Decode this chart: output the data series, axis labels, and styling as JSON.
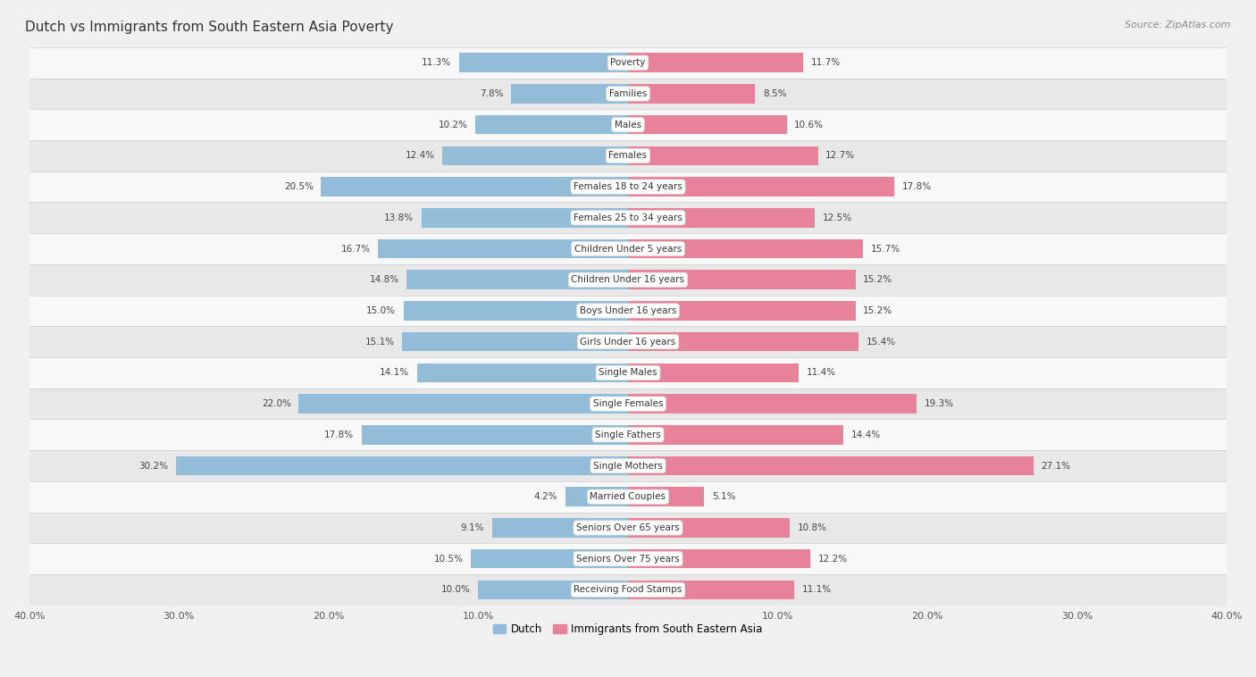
{
  "title": "Dutch vs Immigrants from South Eastern Asia Poverty",
  "source": "Source: ZipAtlas.com",
  "categories": [
    "Poverty",
    "Families",
    "Males",
    "Females",
    "Females 18 to 24 years",
    "Females 25 to 34 years",
    "Children Under 5 years",
    "Children Under 16 years",
    "Boys Under 16 years",
    "Girls Under 16 years",
    "Single Males",
    "Single Females",
    "Single Fathers",
    "Single Mothers",
    "Married Couples",
    "Seniors Over 65 years",
    "Seniors Over 75 years",
    "Receiving Food Stamps"
  ],
  "dutch_values": [
    11.3,
    7.8,
    10.2,
    12.4,
    20.5,
    13.8,
    16.7,
    14.8,
    15.0,
    15.1,
    14.1,
    22.0,
    17.8,
    30.2,
    4.2,
    9.1,
    10.5,
    10.0
  ],
  "immigrants_values": [
    11.7,
    8.5,
    10.6,
    12.7,
    17.8,
    12.5,
    15.7,
    15.2,
    15.2,
    15.4,
    11.4,
    19.3,
    14.4,
    27.1,
    5.1,
    10.8,
    12.2,
    11.1
  ],
  "dutch_color": "#92bcd8",
  "immigrants_color": "#e8829a",
  "dutch_label": "Dutch",
  "immigrants_label": "Immigrants from South Eastern Asia",
  "xlim": 40.0,
  "background_color": "#f0f0f0",
  "row_color_light": "#f8f8f8",
  "row_color_dark": "#e8e8e8",
  "title_fontsize": 11,
  "source_fontsize": 8,
  "label_fontsize": 7.5,
  "value_fontsize": 7.5,
  "legend_fontsize": 8.5,
  "axis_label_fontsize": 8
}
